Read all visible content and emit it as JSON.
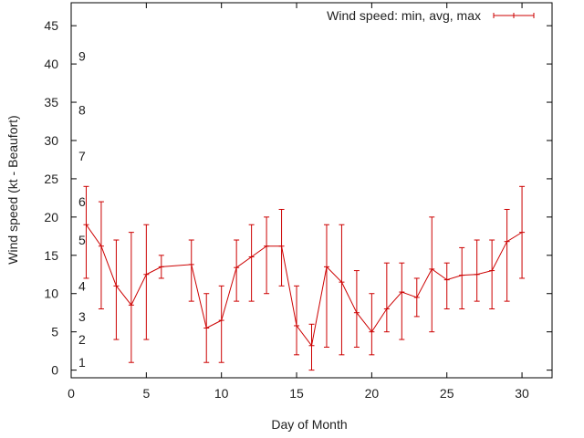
{
  "chart_data": {
    "type": "line",
    "xlabel": "Day of Month",
    "ylabel": "Wind speed (kt - Beaufort)",
    "xlim": [
      0,
      32
    ],
    "ylim": [
      -1,
      48
    ],
    "xticks": [
      0,
      5,
      10,
      15,
      20,
      25,
      30
    ],
    "yticks": [
      0,
      5,
      10,
      15,
      20,
      25,
      30,
      35,
      40,
      45
    ],
    "grid": false,
    "legend_position": "top-right",
    "beaufort_labels": [
      {
        "label": "1",
        "y": 1
      },
      {
        "label": "2",
        "y": 4
      },
      {
        "label": "3",
        "y": 7
      },
      {
        "label": "4",
        "y": 11
      },
      {
        "label": "5",
        "y": 17
      },
      {
        "label": "6",
        "y": 22
      },
      {
        "label": "7",
        "y": 28
      },
      {
        "label": "8",
        "y": 34
      },
      {
        "label": "9",
        "y": 41
      }
    ],
    "series": [
      {
        "name": "Wind speed: min, avg, max",
        "color": "#cc0000",
        "x": [
          1,
          2,
          3,
          4,
          5,
          6,
          8,
          9,
          10,
          11,
          12,
          13,
          14,
          15,
          16,
          17,
          18,
          19,
          20,
          21,
          22,
          23,
          24,
          25,
          26,
          27,
          28,
          29,
          30
        ],
        "avg": [
          19,
          16.2,
          11,
          8.5,
          12.5,
          13.5,
          13.8,
          5.5,
          6.5,
          13.4,
          14.8,
          16.2,
          16.2,
          5.8,
          3.2,
          13.5,
          11.5,
          7.5,
          5,
          8,
          10.2,
          9.5,
          13.2,
          11.8,
          12.4,
          12.5,
          13,
          16.8,
          18
        ],
        "min": [
          12,
          8,
          4,
          1,
          4,
          12,
          9,
          1,
          1,
          9,
          9,
          10,
          11,
          2,
          0,
          3,
          2,
          3,
          2,
          5,
          4,
          7,
          5,
          8,
          8,
          9,
          8,
          9,
          12
        ],
        "max": [
          24,
          22,
          17,
          18,
          19,
          15,
          17,
          10,
          11,
          17,
          19,
          20,
          21,
          11,
          6,
          19,
          19,
          13,
          10,
          14,
          14,
          12,
          20,
          14,
          16,
          17,
          17,
          21,
          24
        ]
      }
    ]
  }
}
